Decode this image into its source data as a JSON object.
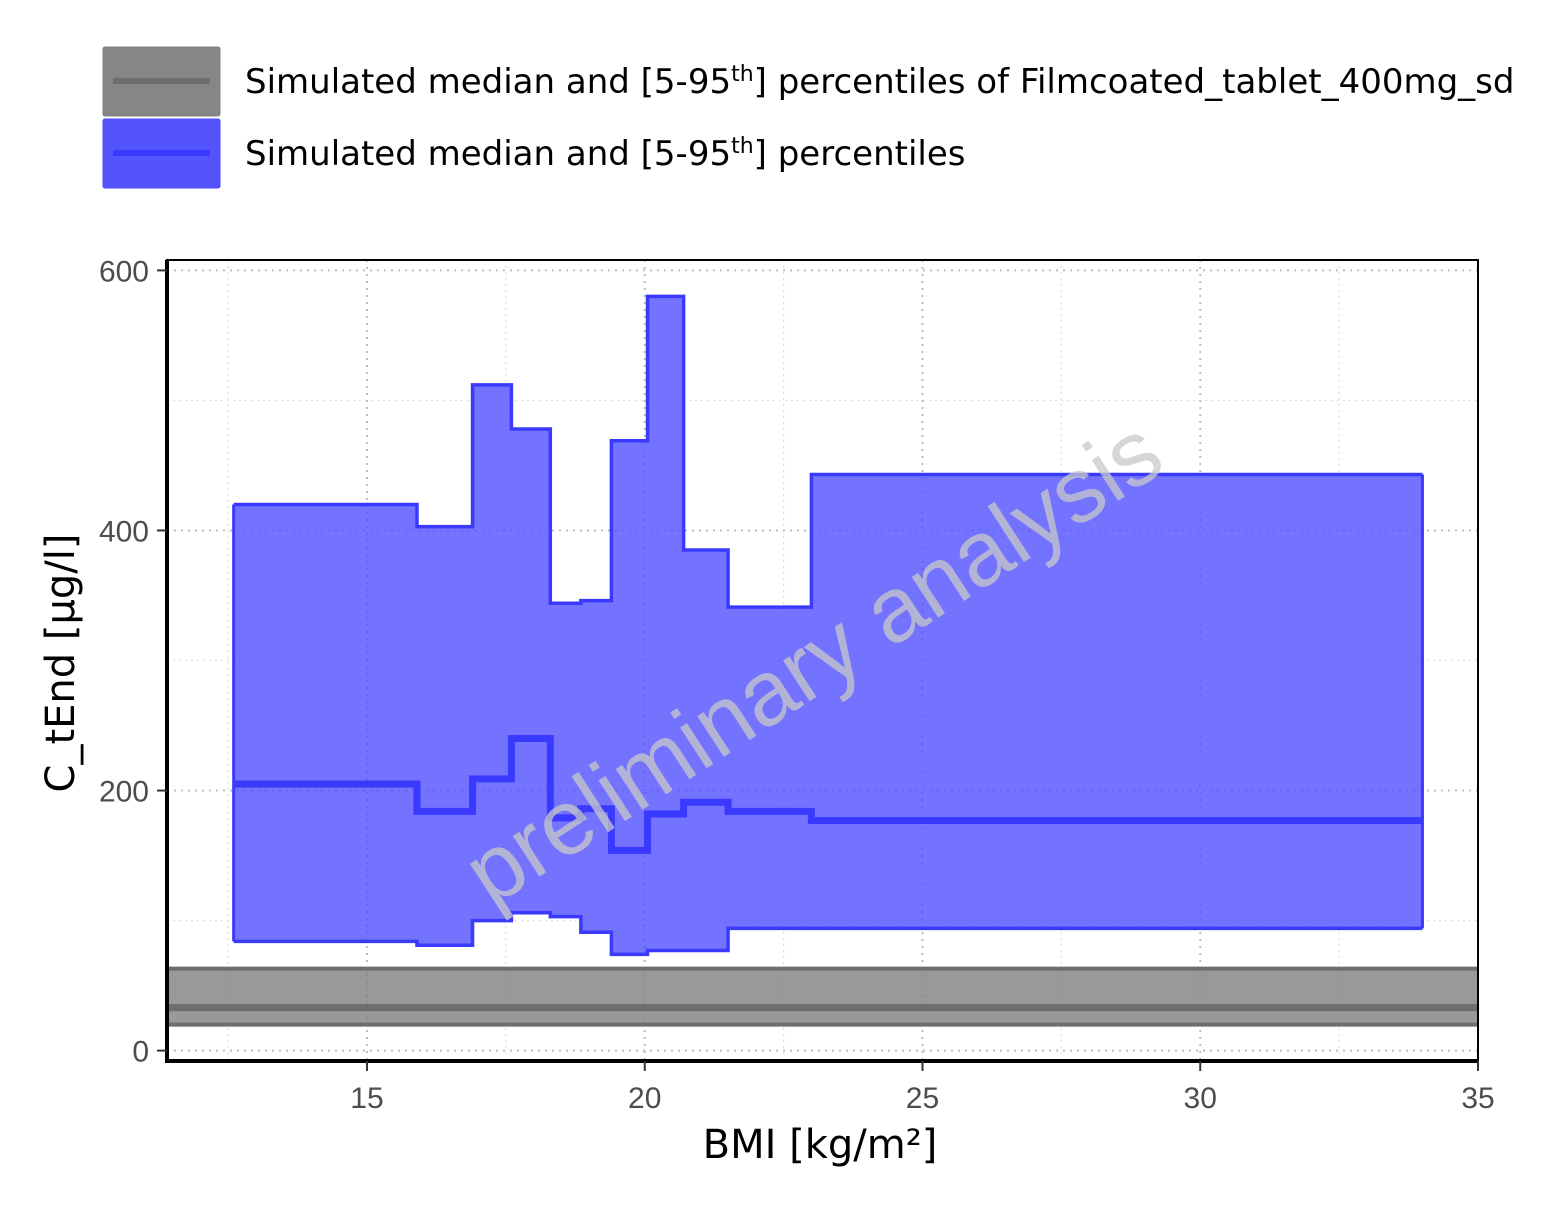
{
  "chart_data": {
    "type": "area",
    "xlabel": "BMI [kg/m²]",
    "ylabel": "C_tEnd [µg/l]",
    "xlim": [
      11.4,
      35
    ],
    "ylim": [
      -8,
      608
    ],
    "x_ticks": [
      15,
      20,
      25,
      30,
      35
    ],
    "y_ticks": [
      0,
      200,
      400,
      600
    ],
    "x_minor_ticks": [
      12.5,
      17.5,
      22.5,
      27.5,
      32.5
    ],
    "y_minor_ticks": [
      100,
      300,
      500
    ],
    "grid": true,
    "watermark": "preliminary analysis",
    "legend": {
      "position": "top",
      "entries": [
        {
          "id": "reference",
          "text_before": "Simulated median and [5-95",
          "superscript": "th",
          "text_after": "] percentiles of Filmcoated_tablet_400mg_sd",
          "fill_color": "#808080",
          "line_color": "#6e6e6e"
        },
        {
          "id": "population",
          "text_before": "Simulated median and [5-95",
          "superscript": "th",
          "text_after": "] percentiles",
          "fill_color": "#4b4bff",
          "line_color": "#3a3aff"
        }
      ]
    },
    "reference_band": {
      "median": 33,
      "lower": 20,
      "upper": 63,
      "fill_color": "#808080",
      "fill_opacity": 0.8,
      "line_color": "#6e6e6e"
    },
    "series": {
      "fill_color": "#4b4bff",
      "fill_opacity": 0.78,
      "line_color": "#3a3aff",
      "bins": [
        {
          "x_start": 12.6,
          "x_end": 15.9,
          "lower": 84,
          "median": 205,
          "upper": 420
        },
        {
          "x_start": 15.9,
          "x_end": 16.9,
          "lower": 81,
          "median": 184,
          "upper": 403
        },
        {
          "x_start": 16.9,
          "x_end": 17.6,
          "lower": 100,
          "median": 209,
          "upper": 512
        },
        {
          "x_start": 17.6,
          "x_end": 18.3,
          "lower": 106,
          "median": 240,
          "upper": 478
        },
        {
          "x_start": 18.3,
          "x_end": 18.85,
          "lower": 103,
          "median": 179,
          "upper": 344
        },
        {
          "x_start": 18.85,
          "x_end": 19.4,
          "lower": 91,
          "median": 186,
          "upper": 346
        },
        {
          "x_start": 19.4,
          "x_end": 20.05,
          "lower": 74,
          "median": 154,
          "upper": 469
        },
        {
          "x_start": 20.05,
          "x_end": 20.7,
          "lower": 77,
          "median": 182,
          "upper": 580
        },
        {
          "x_start": 20.7,
          "x_end": 21.5,
          "lower": 77,
          "median": 191,
          "upper": 385
        },
        {
          "x_start": 21.5,
          "x_end": 23.0,
          "lower": 94,
          "median": 184,
          "upper": 341
        },
        {
          "x_start": 23.0,
          "x_end": 34.0,
          "lower": 94,
          "median": 177,
          "upper": 443
        }
      ]
    }
  }
}
